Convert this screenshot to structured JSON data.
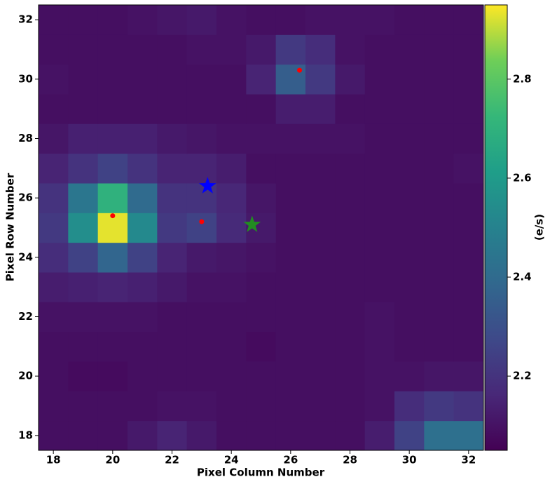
{
  "chart_data": {
    "type": "heatmap",
    "xlabel": "Pixel Column Number",
    "ylabel": "Pixel Row Number",
    "x": [
      18,
      19,
      20,
      21,
      22,
      23,
      24,
      25,
      26,
      27,
      28,
      29,
      30,
      31,
      32
    ],
    "y": [
      18,
      19,
      20,
      21,
      22,
      23,
      24,
      25,
      26,
      27,
      28,
      29,
      30,
      31,
      32
    ],
    "values": [
      [
        2.09,
        2.09,
        2.09,
        2.12,
        2.15,
        2.12,
        2.09,
        2.09,
        2.09,
        2.09,
        2.09,
        2.13,
        2.25,
        2.42,
        2.42
      ],
      [
        2.09,
        2.09,
        2.09,
        2.09,
        2.1,
        2.1,
        2.09,
        2.09,
        2.09,
        2.09,
        2.09,
        2.1,
        2.18,
        2.22,
        2.2
      ],
      [
        2.09,
        2.08,
        2.08,
        2.09,
        2.09,
        2.09,
        2.09,
        2.09,
        2.09,
        2.09,
        2.09,
        2.1,
        2.1,
        2.11,
        2.11
      ],
      [
        2.09,
        2.09,
        2.09,
        2.09,
        2.09,
        2.09,
        2.09,
        2.08,
        2.09,
        2.09,
        2.09,
        2.1,
        2.09,
        2.09,
        2.09
      ],
      [
        2.1,
        2.1,
        2.1,
        2.1,
        2.09,
        2.09,
        2.09,
        2.09,
        2.09,
        2.09,
        2.09,
        2.1,
        2.09,
        2.09,
        2.09
      ],
      [
        2.13,
        2.14,
        2.15,
        2.14,
        2.12,
        2.1,
        2.1,
        2.09,
        2.09,
        2.09,
        2.09,
        2.09,
        2.09,
        2.09,
        2.09
      ],
      [
        2.18,
        2.25,
        2.38,
        2.25,
        2.15,
        2.12,
        2.11,
        2.1,
        2.09,
        2.09,
        2.09,
        2.09,
        2.09,
        2.09,
        2.09
      ],
      [
        2.22,
        2.55,
        2.93,
        2.53,
        2.22,
        2.25,
        2.17,
        2.12,
        2.09,
        2.09,
        2.09,
        2.09,
        2.09,
        2.09,
        2.09
      ],
      [
        2.2,
        2.45,
        2.7,
        2.4,
        2.2,
        2.2,
        2.16,
        2.11,
        2.09,
        2.09,
        2.09,
        2.09,
        2.09,
        2.09,
        2.09
      ],
      [
        2.15,
        2.2,
        2.25,
        2.2,
        2.15,
        2.15,
        2.13,
        2.09,
        2.09,
        2.09,
        2.09,
        2.09,
        2.09,
        2.09,
        2.1
      ],
      [
        2.11,
        2.14,
        2.14,
        2.14,
        2.12,
        2.11,
        2.1,
        2.1,
        2.1,
        2.1,
        2.1,
        2.09,
        2.09,
        2.09,
        2.09
      ],
      [
        2.09,
        2.09,
        2.09,
        2.09,
        2.09,
        2.09,
        2.09,
        2.09,
        2.13,
        2.13,
        2.09,
        2.09,
        2.09,
        2.09,
        2.09
      ],
      [
        2.1,
        2.09,
        2.09,
        2.09,
        2.09,
        2.09,
        2.09,
        2.15,
        2.35,
        2.22,
        2.12,
        2.09,
        2.09,
        2.09,
        2.09
      ],
      [
        2.09,
        2.09,
        2.09,
        2.09,
        2.09,
        2.1,
        2.1,
        2.12,
        2.22,
        2.18,
        2.1,
        2.09,
        2.09,
        2.09,
        2.09
      ],
      [
        2.09,
        2.09,
        2.09,
        2.1,
        2.11,
        2.12,
        2.1,
        2.09,
        2.09,
        2.1,
        2.1,
        2.1,
        2.09,
        2.09,
        2.09
      ]
    ],
    "xlim": [
      17.5,
      32.5
    ],
    "ylim": [
      17.5,
      32.5
    ],
    "xticks": [
      18,
      20,
      22,
      24,
      26,
      28,
      30,
      32
    ],
    "yticks": [
      18,
      20,
      22,
      24,
      26,
      28,
      30,
      32
    ],
    "colormap": "viridis",
    "clim": [
      2.05,
      2.95
    ],
    "cticks": [
      2.2,
      2.4,
      2.6,
      2.8
    ],
    "clabel": "(e/s)",
    "markers": [
      {
        "x": 20,
        "y": 25.4,
        "shape": "dot",
        "color": "#ff0000"
      },
      {
        "x": 23,
        "y": 25.2,
        "shape": "dot",
        "color": "#ff0000"
      },
      {
        "x": 26.3,
        "y": 30.3,
        "shape": "dot",
        "color": "#ff0000"
      },
      {
        "x": 23.2,
        "y": 26.4,
        "shape": "star",
        "color": "#0000ff"
      },
      {
        "x": 24.7,
        "y": 25.1,
        "shape": "star",
        "color": "#228b22"
      }
    ]
  }
}
